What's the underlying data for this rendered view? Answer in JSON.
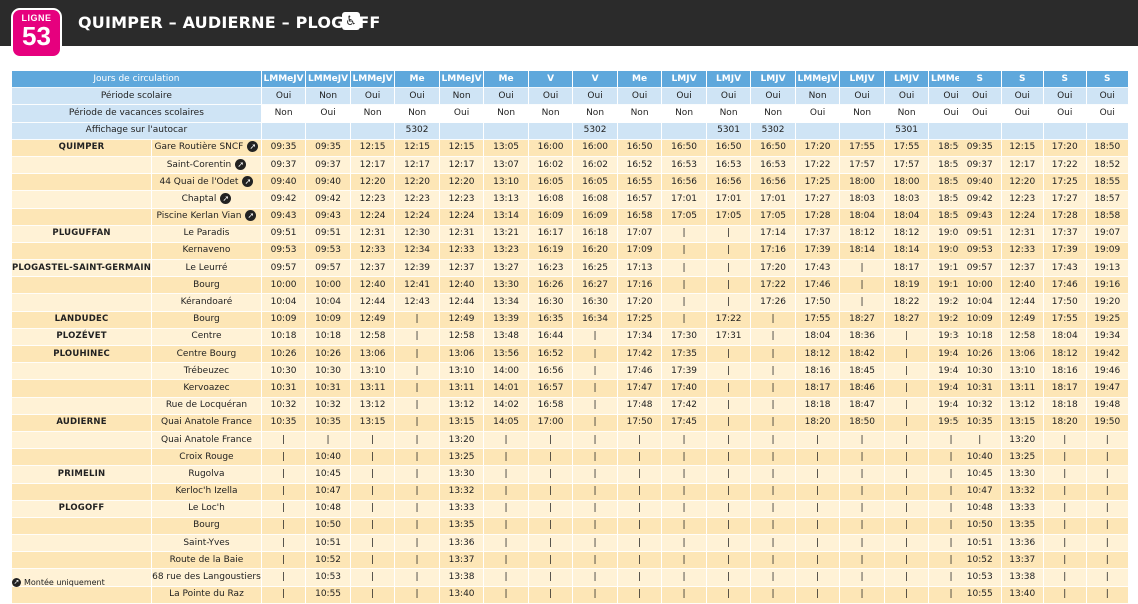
{
  "header": {
    "line_label": "LIGNE",
    "line_number": "53",
    "title": "QUIMPER – AUDIERNE – PLOGOFF",
    "accessibility_icon": "wheelchair-icon",
    "colors": {
      "line": "#e6007e",
      "header_bg": "#2b2b2b",
      "header_row": "#5fa8dc"
    }
  },
  "info_rows": [
    {
      "label": "Jours de circulation",
      "main": [
        "LMMeJV",
        "LMMeJV",
        "LMMeJV",
        "Me",
        "LMMeJV",
        "Me",
        "V",
        "V",
        "Me",
        "LMJV",
        "LMJV",
        "LMJV",
        "LMMeJV",
        "LMJV",
        "LMJV",
        "LMMeJV"
      ],
      "sat": [
        "S",
        "S",
        "S",
        "S"
      ]
    },
    {
      "label": "Période scolaire",
      "main": [
        "Oui",
        "Non",
        "Oui",
        "Oui",
        "Non",
        "Oui",
        "Oui",
        "Oui",
        "Oui",
        "Oui",
        "Oui",
        "Oui",
        "Non",
        "Oui",
        "Oui",
        "Oui"
      ],
      "sat": [
        "Oui",
        "Oui",
        "Oui",
        "Oui"
      ]
    },
    {
      "label": "Période de vacances scolaires",
      "main": [
        "Non",
        "Oui",
        "Non",
        "Non",
        "Oui",
        "Non",
        "Non",
        "Non",
        "Non",
        "Non",
        "Non",
        "Non",
        "Oui",
        "Non",
        "Non",
        "Oui"
      ],
      "sat": [
        "Oui",
        "Oui",
        "Oui",
        "Oui"
      ]
    },
    {
      "label": "Affichage sur l'autocar",
      "main": [
        "",
        "",
        "",
        "5302",
        "",
        "",
        "",
        "5302",
        "",
        "",
        "5301",
        "5302",
        "",
        "",
        "5301",
        ""
      ],
      "sat": [
        "",
        "",
        "",
        ""
      ]
    }
  ],
  "stops": [
    {
      "commune": "QUIMPER",
      "stop": "Gare Routière SNCF",
      "arrow": true,
      "main": [
        "09:35",
        "09:35",
        "12:15",
        "12:15",
        "12:15",
        "13:05",
        "16:00",
        "16:00",
        "16:50",
        "16:50",
        "16:50",
        "16:50",
        "17:20",
        "17:55",
        "17:55",
        "18:50"
      ],
      "sat": [
        "09:35",
        "12:15",
        "17:20",
        "18:50"
      ]
    },
    {
      "commune": "",
      "stop": "Saint-Corentin",
      "arrow": true,
      "main": [
        "09:37",
        "09:37",
        "12:17",
        "12:17",
        "12:17",
        "13:07",
        "16:02",
        "16:02",
        "16:52",
        "16:53",
        "16:53",
        "16:53",
        "17:22",
        "17:57",
        "17:57",
        "18:52"
      ],
      "sat": [
        "09:37",
        "12:17",
        "17:22",
        "18:52"
      ]
    },
    {
      "commune": "",
      "stop": "44 Quai de l'Odet",
      "arrow": true,
      "main": [
        "09:40",
        "09:40",
        "12:20",
        "12:20",
        "12:20",
        "13:10",
        "16:05",
        "16:05",
        "16:55",
        "16:56",
        "16:56",
        "16:56",
        "17:25",
        "18:00",
        "18:00",
        "18:55"
      ],
      "sat": [
        "09:40",
        "12:20",
        "17:25",
        "18:55"
      ]
    },
    {
      "commune": "",
      "stop": "Chaptal",
      "arrow": true,
      "main": [
        "09:42",
        "09:42",
        "12:23",
        "12:23",
        "12:23",
        "13:13",
        "16:08",
        "16:08",
        "16:57",
        "17:01",
        "17:01",
        "17:01",
        "17:27",
        "18:03",
        "18:03",
        "18:57"
      ],
      "sat": [
        "09:42",
        "12:23",
        "17:27",
        "18:57"
      ]
    },
    {
      "commune": "",
      "stop": "Piscine Kerlan Vian",
      "arrow": true,
      "main": [
        "09:43",
        "09:43",
        "12:24",
        "12:24",
        "12:24",
        "13:14",
        "16:09",
        "16:09",
        "16:58",
        "17:05",
        "17:05",
        "17:05",
        "17:28",
        "18:04",
        "18:04",
        "18:58"
      ],
      "sat": [
        "09:43",
        "12:24",
        "17:28",
        "18:58"
      ]
    },
    {
      "commune": "PLUGUFFAN",
      "stop": "Le Paradis",
      "arrow": false,
      "main": [
        "09:51",
        "09:51",
        "12:31",
        "12:30",
        "12:31",
        "13:21",
        "16:17",
        "16:18",
        "17:07",
        "|",
        "|",
        "17:14",
        "17:37",
        "18:12",
        "18:12",
        "19:07"
      ],
      "sat": [
        "09:51",
        "12:31",
        "17:37",
        "19:07"
      ]
    },
    {
      "commune": "",
      "stop": "Kernaveno",
      "arrow": false,
      "main": [
        "09:53",
        "09:53",
        "12:33",
        "12:34",
        "12:33",
        "13:23",
        "16:19",
        "16:20",
        "17:09",
        "|",
        "|",
        "17:16",
        "17:39",
        "18:14",
        "18:14",
        "19:09"
      ],
      "sat": [
        "09:53",
        "12:33",
        "17:39",
        "19:09"
      ]
    },
    {
      "commune": "PLOGASTEL-SAINT-GERMAIN",
      "stop": "Le Leurré",
      "arrow": false,
      "main": [
        "09:57",
        "09:57",
        "12:37",
        "12:39",
        "12:37",
        "13:27",
        "16:23",
        "16:25",
        "17:13",
        "|",
        "|",
        "17:20",
        "17:43",
        "|",
        "18:17",
        "19:13"
      ],
      "sat": [
        "09:57",
        "12:37",
        "17:43",
        "19:13"
      ]
    },
    {
      "commune": "",
      "stop": "Bourg",
      "arrow": false,
      "main": [
        "10:00",
        "10:00",
        "12:40",
        "12:41",
        "12:40",
        "13:30",
        "16:26",
        "16:27",
        "17:16",
        "|",
        "|",
        "17:22",
        "17:46",
        "|",
        "18:19",
        "19:16"
      ],
      "sat": [
        "10:00",
        "12:40",
        "17:46",
        "19:16"
      ]
    },
    {
      "commune": "",
      "stop": "Kérandoaré",
      "arrow": false,
      "main": [
        "10:04",
        "10:04",
        "12:44",
        "12:43",
        "12:44",
        "13:34",
        "16:30",
        "16:30",
        "17:20",
        "|",
        "|",
        "17:26",
        "17:50",
        "|",
        "18:22",
        "19:20"
      ],
      "sat": [
        "10:04",
        "12:44",
        "17:50",
        "19:20"
      ]
    },
    {
      "commune": "LANDUDEC",
      "stop": "Bourg",
      "arrow": false,
      "main": [
        "10:09",
        "10:09",
        "12:49",
        "|",
        "12:49",
        "13:39",
        "16:35",
        "16:34",
        "17:25",
        "|",
        "17:22",
        "|",
        "17:55",
        "18:27",
        "18:27",
        "19:25"
      ],
      "sat": [
        "10:09",
        "12:49",
        "17:55",
        "19:25"
      ]
    },
    {
      "commune": "PLOZÉVET",
      "stop": "Centre",
      "arrow": false,
      "main": [
        "10:18",
        "10:18",
        "12:58",
        "|",
        "12:58",
        "13:48",
        "16:44",
        "|",
        "17:34",
        "17:30",
        "17:31",
        "|",
        "18:04",
        "18:36",
        "|",
        "19:34"
      ],
      "sat": [
        "10:18",
        "12:58",
        "18:04",
        "19:34"
      ]
    },
    {
      "commune": "PLOUHINEC",
      "stop": "Centre Bourg",
      "arrow": false,
      "main": [
        "10:26",
        "10:26",
        "13:06",
        "|",
        "13:06",
        "13:56",
        "16:52",
        "|",
        "17:42",
        "17:35",
        "|",
        "|",
        "18:12",
        "18:42",
        "|",
        "19:42"
      ],
      "sat": [
        "10:26",
        "13:06",
        "18:12",
        "19:42"
      ]
    },
    {
      "commune": "",
      "stop": "Trébeuzec",
      "arrow": false,
      "main": [
        "10:30",
        "10:30",
        "13:10",
        "|",
        "13:10",
        "14:00",
        "16:56",
        "|",
        "17:46",
        "17:39",
        "|",
        "|",
        "18:16",
        "18:45",
        "|",
        "19:46"
      ],
      "sat": [
        "10:30",
        "13:10",
        "18:16",
        "19:46"
      ]
    },
    {
      "commune": "",
      "stop": "Kervoazec",
      "arrow": false,
      "main": [
        "10:31",
        "10:31",
        "13:11",
        "|",
        "13:11",
        "14:01",
        "16:57",
        "|",
        "17:47",
        "17:40",
        "|",
        "|",
        "18:17",
        "18:46",
        "|",
        "19:47"
      ],
      "sat": [
        "10:31",
        "13:11",
        "18:17",
        "19:47"
      ]
    },
    {
      "commune": "",
      "stop": "Rue de Locquéran",
      "arrow": false,
      "main": [
        "10:32",
        "10:32",
        "13:12",
        "|",
        "13:12",
        "14:02",
        "16:58",
        "|",
        "17:48",
        "17:42",
        "|",
        "|",
        "18:18",
        "18:47",
        "|",
        "19:48"
      ],
      "sat": [
        "10:32",
        "13:12",
        "18:18",
        "19:48"
      ]
    },
    {
      "commune": "AUDIERNE",
      "stop": "Quai Anatole France",
      "arrow": false,
      "main": [
        "10:35",
        "10:35",
        "13:15",
        "|",
        "13:15",
        "14:05",
        "17:00",
        "|",
        "17:50",
        "17:45",
        "|",
        "|",
        "18:20",
        "18:50",
        "|",
        "19:50"
      ],
      "sat": [
        "10:35",
        "13:15",
        "18:20",
        "19:50"
      ]
    },
    {
      "commune": "",
      "stop": "Quai Anatole France",
      "arrow": false,
      "main": [
        "|",
        "|",
        "|",
        "|",
        "13:20",
        "|",
        "|",
        "|",
        "|",
        "|",
        "|",
        "|",
        "|",
        "|",
        "|",
        "|"
      ],
      "sat": [
        "|",
        "13:20",
        "|",
        "|"
      ]
    },
    {
      "commune": "",
      "stop": "Croix Rouge",
      "arrow": false,
      "main": [
        "|",
        "10:40",
        "|",
        "|",
        "13:25",
        "|",
        "|",
        "|",
        "|",
        "|",
        "|",
        "|",
        "|",
        "|",
        "|",
        "|"
      ],
      "sat": [
        "10:40",
        "13:25",
        "|",
        "|"
      ]
    },
    {
      "commune": "PRIMELIN",
      "stop": "Rugolva",
      "arrow": false,
      "main": [
        "|",
        "10:45",
        "|",
        "|",
        "13:30",
        "|",
        "|",
        "|",
        "|",
        "|",
        "|",
        "|",
        "|",
        "|",
        "|",
        "|"
      ],
      "sat": [
        "10:45",
        "13:30",
        "|",
        "|"
      ]
    },
    {
      "commune": "",
      "stop": "Kerloc'h Izella",
      "arrow": false,
      "main": [
        "|",
        "10:47",
        "|",
        "|",
        "13:32",
        "|",
        "|",
        "|",
        "|",
        "|",
        "|",
        "|",
        "|",
        "|",
        "|",
        "|"
      ],
      "sat": [
        "10:47",
        "13:32",
        "|",
        "|"
      ]
    },
    {
      "commune": "PLOGOFF",
      "stop": "Le Loc'h",
      "arrow": false,
      "main": [
        "|",
        "10:48",
        "|",
        "|",
        "13:33",
        "|",
        "|",
        "|",
        "|",
        "|",
        "|",
        "|",
        "|",
        "|",
        "|",
        "|"
      ],
      "sat": [
        "10:48",
        "13:33",
        "|",
        "|"
      ]
    },
    {
      "commune": "",
      "stop": "Bourg",
      "arrow": false,
      "main": [
        "|",
        "10:50",
        "|",
        "|",
        "13:35",
        "|",
        "|",
        "|",
        "|",
        "|",
        "|",
        "|",
        "|",
        "|",
        "|",
        "|"
      ],
      "sat": [
        "10:50",
        "13:35",
        "|",
        "|"
      ]
    },
    {
      "commune": "",
      "stop": "Saint-Yves",
      "arrow": false,
      "main": [
        "|",
        "10:51",
        "|",
        "|",
        "13:36",
        "|",
        "|",
        "|",
        "|",
        "|",
        "|",
        "|",
        "|",
        "|",
        "|",
        "|"
      ],
      "sat": [
        "10:51",
        "13:36",
        "|",
        "|"
      ]
    },
    {
      "commune": "",
      "stop": "Route de la Baie",
      "arrow": false,
      "main": [
        "|",
        "10:52",
        "|",
        "|",
        "13:37",
        "|",
        "|",
        "|",
        "|",
        "|",
        "|",
        "|",
        "|",
        "|",
        "|",
        "|"
      ],
      "sat": [
        "10:52",
        "13:37",
        "|",
        "|"
      ]
    },
    {
      "commune": "",
      "stop": "68 rue des Langoustiers",
      "arrow": false,
      "main": [
        "|",
        "10:53",
        "|",
        "|",
        "13:38",
        "|",
        "|",
        "|",
        "|",
        "|",
        "|",
        "|",
        "|",
        "|",
        "|",
        "|"
      ],
      "sat": [
        "10:53",
        "13:38",
        "|",
        "|"
      ]
    },
    {
      "commune": "",
      "stop": "La Pointe du Raz",
      "arrow": false,
      "main": [
        "|",
        "10:55",
        "|",
        "|",
        "13:40",
        "|",
        "|",
        "|",
        "|",
        "|",
        "|",
        "|",
        "|",
        "|",
        "|",
        "|"
      ],
      "sat": [
        "10:55",
        "13:40",
        "|",
        "|"
      ]
    }
  ],
  "footnote": {
    "icon": "boarding-only-arrow-icon",
    "text": "Montée uniquement"
  }
}
